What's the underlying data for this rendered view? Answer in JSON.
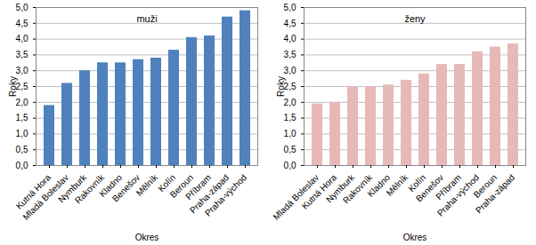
{
  "chart_data": [
    {
      "type": "bar",
      "title": "muži",
      "x_label": "Okres",
      "y_label": "Roky",
      "categories": [
        "Kutná Hora",
        "Mladá Boleslav",
        "Nymburk",
        "Rakovník",
        "Kladno",
        "Benešov",
        "Mělník",
        "Kolín",
        "Beroun",
        "Příbram",
        "Praha-západ",
        "Praha-východ"
      ],
      "values": [
        1.9,
        2.6,
        3.0,
        3.25,
        3.25,
        3.35,
        3.4,
        3.65,
        4.05,
        4.1,
        4.7,
        4.9
      ],
      "color": "#4f81bd",
      "ylim": [
        0,
        5
      ],
      "yticks": [
        {
          "value": 0,
          "label": "0,0"
        },
        {
          "value": 0.5,
          "label": "0,5"
        },
        {
          "value": 1,
          "label": "1,0"
        },
        {
          "value": 1.5,
          "label": "1,5"
        },
        {
          "value": 2,
          "label": "2,0"
        },
        {
          "value": 2.5,
          "label": "2,5"
        },
        {
          "value": 3,
          "label": "3,0"
        },
        {
          "value": 3.5,
          "label": "3,5"
        },
        {
          "value": 4,
          "label": "4,0"
        },
        {
          "value": 4.5,
          "label": "4,5"
        },
        {
          "value": 5,
          "label": "5,0"
        }
      ],
      "grid": true
    },
    {
      "type": "bar",
      "title": "ženy",
      "x_label": "Okres",
      "y_label": "Roky",
      "categories": [
        "Mladá Boleslav",
        "Kutná Hora",
        "Nymburk",
        "Rakovník",
        "Kladno",
        "Mělník",
        "Kolín",
        "Benešov",
        "Příbram",
        "Praha-východ",
        "Beroun",
        "Praha-západ"
      ],
      "values": [
        1.95,
        2.0,
        2.5,
        2.5,
        2.55,
        2.7,
        2.9,
        3.2,
        3.2,
        3.6,
        3.75,
        3.85
      ],
      "color": "#e6b9b8",
      "ylim": [
        0,
        5
      ],
      "yticks": [
        {
          "value": 0,
          "label": "0,0"
        },
        {
          "value": 0.5,
          "label": "0,5"
        },
        {
          "value": 1,
          "label": "1,0"
        },
        {
          "value": 1.5,
          "label": "1,5"
        },
        {
          "value": 2,
          "label": "2,0"
        },
        {
          "value": 2.5,
          "label": "2,5"
        },
        {
          "value": 3,
          "label": "3,0"
        },
        {
          "value": 3.5,
          "label": "3,5"
        },
        {
          "value": 4,
          "label": "4,0"
        },
        {
          "value": 4.5,
          "label": "4,5"
        },
        {
          "value": 5,
          "label": "5,0"
        }
      ],
      "grid": true
    }
  ]
}
